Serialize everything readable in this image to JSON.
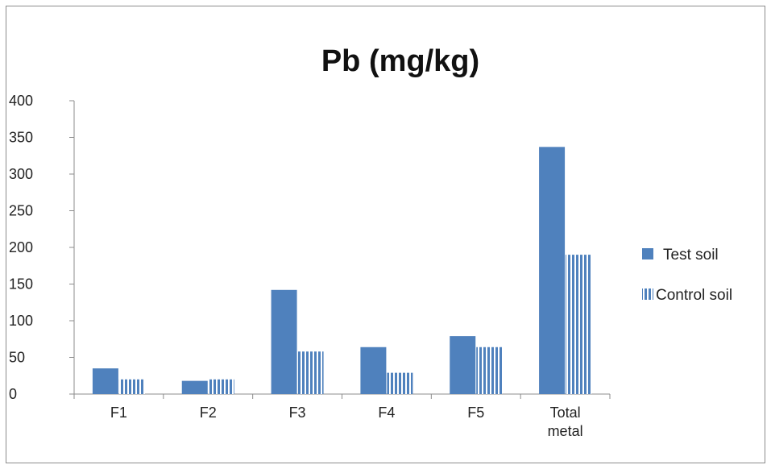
{
  "chart_data": {
    "type": "bar",
    "title": "Pb (mg/kg)",
    "xlabel": "",
    "ylabel": "",
    "categories": [
      [
        "F1"
      ],
      [
        "F2"
      ],
      [
        "F3"
      ],
      [
        "F4"
      ],
      [
        "F5"
      ],
      [
        "Total",
        "metal"
      ]
    ],
    "series": [
      {
        "name": "Test soil",
        "values": [
          35,
          18,
          142,
          64,
          79,
          337
        ],
        "color": "#4f81bd",
        "pattern": "solid"
      },
      {
        "name": "Control soil",
        "values": [
          20,
          20,
          58,
          29,
          64,
          190
        ],
        "color": "#4f81bd",
        "pattern": "vertical-stripes"
      }
    ],
    "ylim": [
      0,
      400
    ],
    "yticks": [
      0,
      50,
      100,
      150,
      200,
      250,
      300,
      350,
      400
    ],
    "grid": false,
    "legend_position": "right"
  }
}
